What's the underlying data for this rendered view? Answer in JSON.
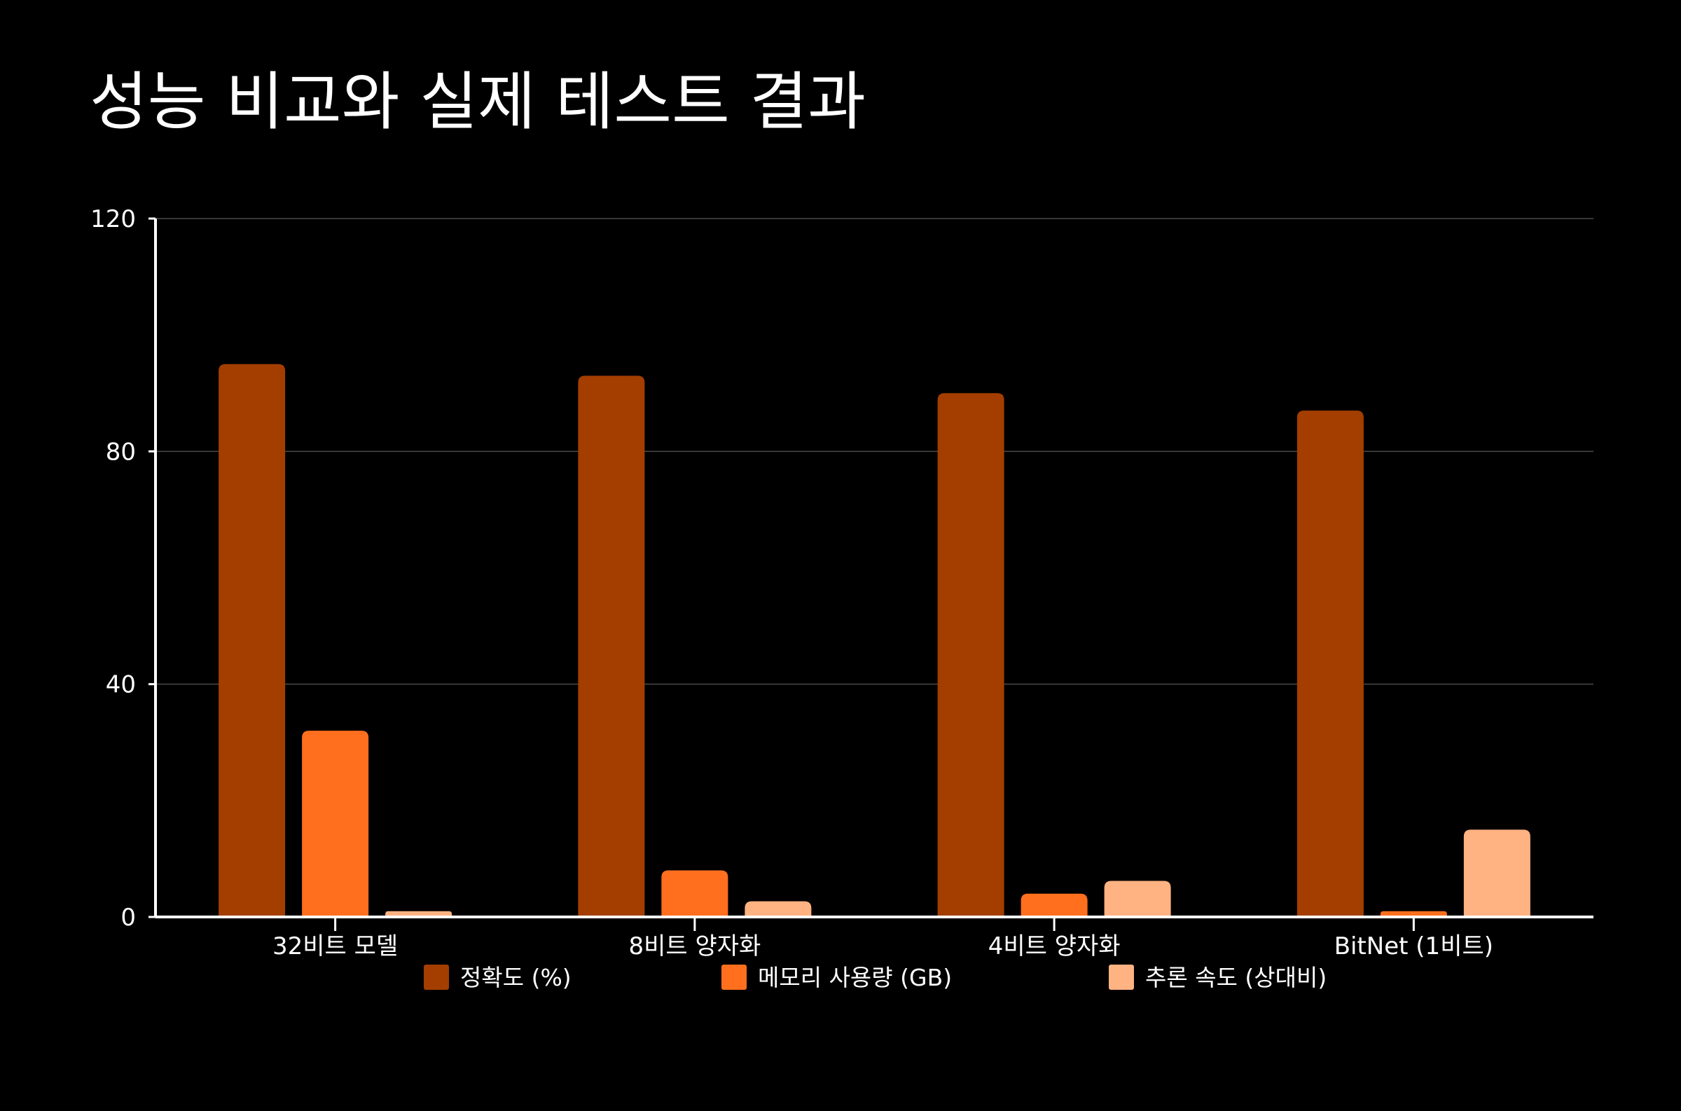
{
  "page": {
    "title": "성능 비교와 실제 테스트 결과"
  },
  "chart_data": {
    "type": "bar",
    "categories": [
      "32비트 모델",
      "8비트 양자화",
      "4비트 양자화",
      "BitNet (1비트)"
    ],
    "series": [
      {
        "name": "정확도 (%)",
        "color": "#A33E00",
        "values": [
          95,
          93,
          90,
          87
        ]
      },
      {
        "name": "메모리 사용량 (GB)",
        "color": "#FF6F1E",
        "values": [
          32,
          8,
          4,
          1
        ]
      },
      {
        "name": "추론 속도 (상대비)",
        "color": "#FFB282",
        "values": [
          1,
          2.7,
          6.2,
          15
        ]
      }
    ],
    "yticks": [
      0,
      40,
      80,
      120
    ],
    "ylim": [
      0,
      120
    ],
    "grid": true,
    "legend_position": "bottom"
  }
}
